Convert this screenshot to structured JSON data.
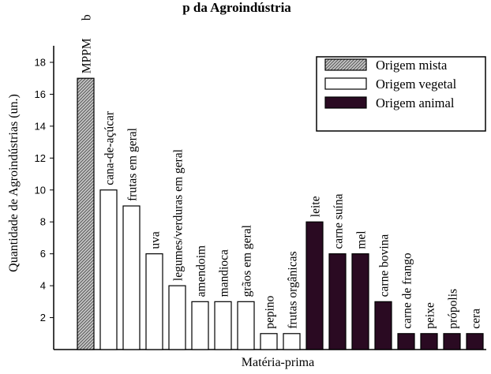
{
  "chart_data": {
    "type": "bar",
    "title": "",
    "top_caption": "p da Agroindústria",
    "xlabel": "Matéria-prima",
    "ylabel": "Quantidade de Agroindústrias (un.)",
    "ylim": [
      0,
      18
    ],
    "yticks": [
      2,
      4,
      6,
      8,
      10,
      12,
      14,
      16,
      18
    ],
    "grid": false,
    "legend_position": "top-right",
    "legend": [
      {
        "name": "Origem mista",
        "pattern": "hatched",
        "color": "#9a9a9a"
      },
      {
        "name": "Origem vegetal",
        "pattern": "solid",
        "color": "#ffffff"
      },
      {
        "name": "Origem animal",
        "pattern": "solid",
        "color": "#2a0a22"
      }
    ],
    "categories": [
      "MPPM",
      "cana-de-açúcar",
      "frutas em geral",
      "uva",
      "legumes/verduras em geral",
      "amendoim",
      "mandioca",
      "grãos em geral",
      "pepino",
      "frutas orgânicas",
      "leite",
      "carne suína",
      "mel",
      "carne bovina",
      "carne de frango",
      "peixe",
      "própolis",
      "cera"
    ],
    "values": [
      17,
      10,
      9,
      6,
      4,
      3,
      3,
      3,
      1,
      1,
      8,
      6,
      6,
      3,
      1,
      1,
      1,
      1
    ],
    "groups": [
      "Origem mista",
      "Origem vegetal",
      "Origem vegetal",
      "Origem vegetal",
      "Origem vegetal",
      "Origem vegetal",
      "Origem vegetal",
      "Origem vegetal",
      "Origem vegetal",
      "Origem vegetal",
      "Origem animal",
      "Origem animal",
      "Origem animal",
      "Origem animal",
      "Origem animal",
      "Origem animal",
      "Origem animal",
      "Origem animal"
    ],
    "annotations": [
      {
        "category": "MPPM",
        "text": "b"
      }
    ]
  }
}
